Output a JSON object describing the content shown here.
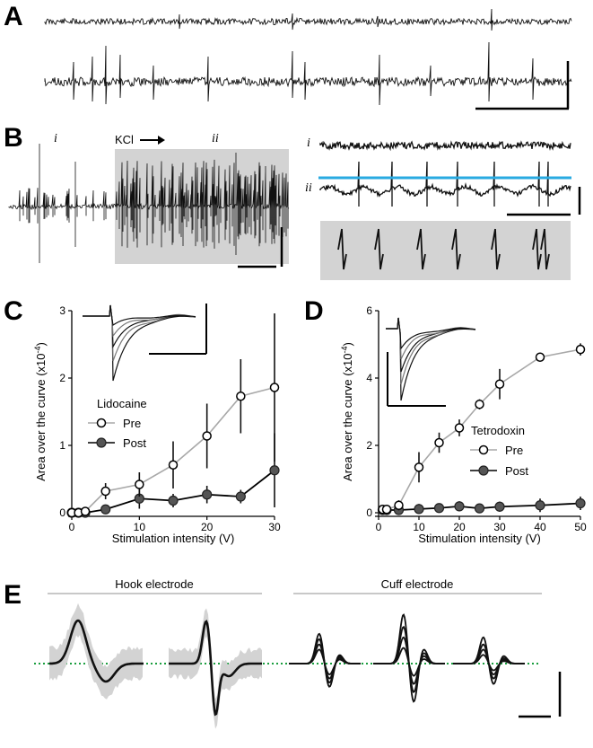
{
  "panels": {
    "a": "A",
    "b": "B",
    "c": "C",
    "d": "D",
    "e": "E"
  },
  "panel_b": {
    "label_i": "i",
    "label_ii": "ii",
    "kcl": "KCl",
    "right_label_i": "i",
    "right_label_ii": "ii"
  },
  "panel_e": {
    "hook_title": "Hook electrode",
    "cuff_title": "Cuff electrode"
  },
  "colors": {
    "threshold": "#29aae1",
    "shade": "#d3d3d3",
    "dotted": "#1a9e3f",
    "pre_line": "#a8a8a8",
    "post_line": "#000000"
  },
  "chart_data": [
    {
      "type": "line",
      "panel": "C",
      "title": "",
      "xlabel": "Stimulation intensity (V)",
      "ylabel": "Area over the curve (x10",
      "ylabel_exp": "-4",
      "ylabel_close": ")",
      "xlim": [
        0,
        30
      ],
      "ylim": [
        0,
        3
      ],
      "xticks": [
        "0",
        "10",
        "20",
        "30"
      ],
      "yticks": [
        "0",
        "1",
        "2",
        "3"
      ],
      "legend_title": "Lidocaine",
      "legend_position": "center-left",
      "series": [
        {
          "name": "Pre",
          "marker": "open-circle",
          "x": [
            0,
            1,
            2,
            5,
            10,
            15,
            20,
            25,
            30
          ],
          "y": [
            0.0,
            0.0,
            0.02,
            0.32,
            0.42,
            0.71,
            1.14,
            1.73,
            1.86
          ],
          "err": [
            0.04,
            0.04,
            0.05,
            0.12,
            0.18,
            0.35,
            0.48,
            0.55,
            1.1
          ]
        },
        {
          "name": "Post",
          "marker": "filled-circle",
          "x": [
            0,
            1,
            2,
            5,
            10,
            15,
            20,
            25,
            30
          ],
          "y": [
            0.0,
            0.0,
            0.0,
            0.05,
            0.21,
            0.18,
            0.27,
            0.24,
            0.63
          ],
          "err": [
            0.03,
            0.03,
            0.03,
            0.06,
            0.15,
            0.1,
            0.13,
            0.1,
            0.55
          ]
        }
      ]
    },
    {
      "type": "line",
      "panel": "D",
      "title": "",
      "xlabel": "Stimulation intensity (V)",
      "ylabel": "Area over the curve (x10",
      "ylabel_exp": "-4",
      "ylabel_close": ")",
      "xlim": [
        0,
        50
      ],
      "ylim": [
        0,
        6
      ],
      "xticks": [
        "0",
        "10",
        "20",
        "30",
        "40",
        "50"
      ],
      "yticks": [
        "0",
        "2",
        "4",
        "6"
      ],
      "legend_title": "Tetrodoxin",
      "legend_position": "center-right",
      "series": [
        {
          "name": "Pre",
          "marker": "open-circle",
          "x": [
            1,
            2,
            5,
            10,
            15,
            20,
            25,
            30,
            40,
            50
          ],
          "y": [
            0.1,
            0.1,
            0.22,
            1.35,
            2.08,
            2.52,
            3.22,
            3.82,
            4.62,
            4.85
          ],
          "err": [
            0.08,
            0.08,
            0.15,
            0.45,
            0.3,
            0.25,
            0.15,
            0.45,
            0.12,
            0.18
          ]
        },
        {
          "name": "Post",
          "marker": "filled-circle",
          "x": [
            1,
            2,
            5,
            10,
            15,
            20,
            25,
            30,
            40,
            50
          ],
          "y": [
            0.08,
            0.08,
            0.08,
            0.11,
            0.14,
            0.19,
            0.13,
            0.18,
            0.22,
            0.28
          ],
          "err": [
            0.05,
            0.05,
            0.05,
            0.15,
            0.12,
            0.15,
            0.12,
            0.15,
            0.2,
            0.2
          ]
        }
      ]
    }
  ]
}
